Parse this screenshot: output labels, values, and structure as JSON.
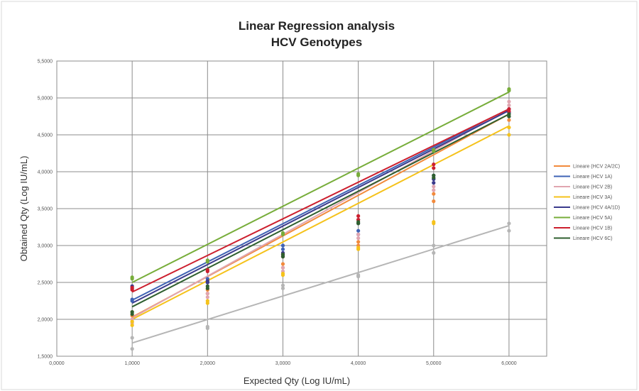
{
  "chart_data": {
    "type": "scatter",
    "title": "Linear Regression analysis",
    "subtitle": "HCV Genotypes",
    "xlabel": "Expected Qty (Log IU/mL)",
    "ylabel": "Obtained Qty (Log IU/mL)",
    "xlim": [
      0.0,
      6.5
    ],
    "ylim": [
      1.5,
      5.5
    ],
    "x_ticks": [
      "0,0000",
      "1,0000",
      "2,0000",
      "3,0000",
      "4,0000",
      "5,0000",
      "6,0000"
    ],
    "x_tick_values": [
      0.0,
      1.0,
      2.0,
      3.0,
      4.0,
      5.0,
      6.0
    ],
    "y_ticks": [
      "1,5000",
      "2,0000",
      "2,5000",
      "3,0000",
      "3,5000",
      "4,0000",
      "4,5000",
      "5,0000",
      "5,5000"
    ],
    "y_tick_values": [
      1.5,
      2.0,
      2.5,
      3.0,
      3.5,
      4.0,
      4.5,
      5.0,
      5.5
    ],
    "grid": true,
    "legend_position": "right",
    "series": [
      {
        "name": "Lineare (HCV 2A/2C)",
        "color": "#f28a3c",
        "fit": [
          [
            1.0,
            2.03
          ],
          [
            6.0,
            4.78
          ]
        ],
        "points": [
          [
            1.0,
            2.05
          ],
          [
            1.0,
            2.1
          ],
          [
            2.0,
            2.35
          ],
          [
            2.0,
            2.4
          ],
          [
            3.0,
            2.7
          ],
          [
            3.0,
            2.75
          ],
          [
            4.0,
            3.0
          ],
          [
            4.0,
            3.05
          ],
          [
            5.0,
            3.6
          ],
          [
            5.0,
            3.7
          ],
          [
            6.0,
            4.7
          ],
          [
            6.0,
            4.75
          ]
        ]
      },
      {
        "name": "Lineare (HCV 1A)",
        "color": "#3f63b5",
        "fit": [
          [
            1.0,
            2.26
          ],
          [
            6.0,
            4.85
          ]
        ],
        "points": [
          [
            1.0,
            2.27
          ],
          [
            1.0,
            2.25
          ],
          [
            2.0,
            2.5
          ],
          [
            2.0,
            2.55
          ],
          [
            3.0,
            2.95
          ],
          [
            3.0,
            3.0
          ],
          [
            4.0,
            3.15
          ],
          [
            4.0,
            3.2
          ],
          [
            5.0,
            3.9
          ],
          [
            5.0,
            3.95
          ],
          [
            6.0,
            4.85
          ],
          [
            6.0,
            4.8
          ]
        ]
      },
      {
        "name": "Lineare (HCV 2B)",
        "color": "#e0a5b0",
        "fit": [
          [
            1.0,
            2.02
          ],
          [
            6.0,
            4.85
          ]
        ],
        "points": [
          [
            1.0,
            2.0
          ],
          [
            1.0,
            1.95
          ],
          [
            2.0,
            2.3
          ],
          [
            2.0,
            2.35
          ],
          [
            3.0,
            2.65
          ],
          [
            3.0,
            2.7
          ],
          [
            4.0,
            3.1
          ],
          [
            4.0,
            3.15
          ],
          [
            5.0,
            3.75
          ],
          [
            5.0,
            3.8
          ],
          [
            6.0,
            4.95
          ],
          [
            6.0,
            4.9
          ]
        ]
      },
      {
        "name": "Lineare (HCV 3A)",
        "color": "#f5c21b",
        "fit": [
          [
            1.0,
            2.0
          ],
          [
            6.0,
            4.62
          ]
        ],
        "points": [
          [
            1.0,
            1.92
          ],
          [
            1.0,
            1.97
          ],
          [
            2.0,
            2.25
          ],
          [
            2.0,
            2.22
          ],
          [
            3.0,
            2.6
          ],
          [
            3.0,
            2.62
          ],
          [
            4.0,
            2.95
          ],
          [
            4.0,
            2.97
          ],
          [
            5.0,
            3.3
          ],
          [
            5.0,
            3.32
          ],
          [
            6.0,
            4.5
          ],
          [
            6.0,
            4.6
          ]
        ]
      },
      {
        "name": "Lineare (HCV 4A/1D)",
        "color": "#3b3b8c",
        "fit": [
          [
            1.0,
            2.22
          ],
          [
            6.0,
            4.83
          ]
        ],
        "points": [
          [
            1.0,
            2.42
          ],
          [
            1.0,
            2.45
          ],
          [
            2.0,
            2.5
          ],
          [
            2.0,
            2.52
          ],
          [
            3.0,
            2.9
          ],
          [
            3.0,
            2.87
          ],
          [
            4.0,
            3.3
          ],
          [
            4.0,
            3.35
          ],
          [
            5.0,
            3.85
          ],
          [
            5.0,
            3.9
          ],
          [
            6.0,
            4.75
          ],
          [
            6.0,
            4.8
          ]
        ]
      },
      {
        "name": "Lineare (HCV 5A)",
        "color": "#77ad3a",
        "fit": [
          [
            1.0,
            2.5
          ],
          [
            6.0,
            5.08
          ]
        ],
        "points": [
          [
            1.0,
            2.57
          ],
          [
            1.0,
            2.55
          ],
          [
            2.0,
            2.78
          ],
          [
            2.0,
            2.8
          ],
          [
            3.0,
            3.15
          ],
          [
            3.0,
            3.17
          ],
          [
            4.0,
            3.95
          ],
          [
            4.0,
            3.97
          ],
          [
            5.0,
            4.28
          ],
          [
            5.0,
            4.3
          ],
          [
            6.0,
            5.1
          ],
          [
            6.0,
            5.12
          ]
        ]
      },
      {
        "name": "Lineare (HCV 1B)",
        "color": "#cc1f2e",
        "fit": [
          [
            1.0,
            2.37
          ],
          [
            6.0,
            4.85
          ]
        ],
        "points": [
          [
            1.0,
            2.4
          ],
          [
            1.0,
            2.43
          ],
          [
            2.0,
            2.65
          ],
          [
            2.0,
            2.67
          ],
          [
            3.0,
            2.85
          ],
          [
            3.0,
            2.88
          ],
          [
            4.0,
            3.35
          ],
          [
            4.0,
            3.4
          ],
          [
            5.0,
            4.1
          ],
          [
            5.0,
            4.05
          ],
          [
            6.0,
            4.85
          ],
          [
            6.0,
            4.82
          ]
        ]
      },
      {
        "name": "Lineare (HCV 6C)",
        "color": "#2f5f2f",
        "fit": [
          [
            1.0,
            2.17
          ],
          [
            6.0,
            4.78
          ]
        ],
        "points": [
          [
            1.0,
            2.07
          ],
          [
            1.0,
            2.1
          ],
          [
            2.0,
            2.42
          ],
          [
            2.0,
            2.45
          ],
          [
            3.0,
            2.85
          ],
          [
            3.0,
            2.88
          ],
          [
            4.0,
            3.3
          ],
          [
            4.0,
            3.32
          ],
          [
            5.0,
            3.95
          ],
          [
            5.0,
            3.92
          ],
          [
            6.0,
            4.75
          ],
          [
            6.0,
            4.78
          ]
        ]
      },
      {
        "name": "",
        "color": "#b5b5b5",
        "fit": [
          [
            1.0,
            1.68
          ],
          [
            6.0,
            3.27
          ]
        ],
        "points": [
          [
            1.0,
            1.6
          ],
          [
            1.0,
            1.75
          ],
          [
            2.0,
            1.88
          ],
          [
            2.0,
            1.9
          ],
          [
            3.0,
            2.42
          ],
          [
            3.0,
            2.46
          ],
          [
            4.0,
            2.58
          ],
          [
            4.0,
            2.6
          ],
          [
            5.0,
            2.9
          ],
          [
            5.0,
            3.0
          ],
          [
            6.0,
            3.2
          ],
          [
            6.0,
            3.3
          ]
        ]
      }
    ]
  }
}
